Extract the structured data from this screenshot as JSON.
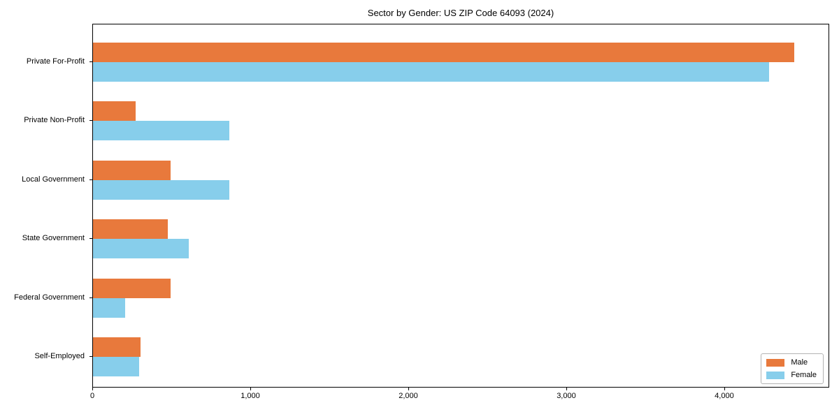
{
  "chart_data": {
    "type": "bar",
    "orientation": "horizontal",
    "title": "Sector by Gender: US ZIP Code 64093 (2024)",
    "categories": [
      "Private For-Profit",
      "Private Non-Profit",
      "Local Government",
      "State Government",
      "Federal Government",
      "Self-Employed"
    ],
    "series": [
      {
        "name": "Male",
        "color": "#e8793c",
        "values": [
          4440,
          270,
          490,
          475,
          490,
          300
        ]
      },
      {
        "name": "Female",
        "color": "#87ceeb",
        "values": [
          4280,
          865,
          865,
          605,
          205,
          290
        ]
      }
    ],
    "xlabel": "",
    "ylabel": "",
    "xlim": [
      0,
      4664
    ],
    "xticks": [
      {
        "value": 0,
        "label": "0"
      },
      {
        "value": 1000,
        "label": "1,000"
      },
      {
        "value": 2000,
        "label": "2,000"
      },
      {
        "value": 3000,
        "label": "3,000"
      },
      {
        "value": 4000,
        "label": "4,000"
      }
    ],
    "grid": false,
    "legend": {
      "position": "lower right"
    },
    "colors": {
      "spine": "#000000",
      "text": "#000000",
      "legend_border": "#b3b3b3"
    }
  }
}
